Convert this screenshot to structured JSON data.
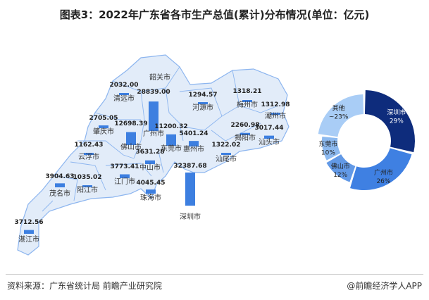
{
  "title": "图表3：2022年广东省各市生产总值(累计)分布情况(单位：亿元)",
  "source": "资料来源：广东省统计局 前瞻产业研究院",
  "credit": "@前瞻经济学人APP",
  "watermark": "前瞻产业研究院",
  "colors": {
    "bar": "#3d7fe0",
    "map_fill": "#e2ecf9",
    "map_stroke": "#8cb5ef"
  },
  "chart_data": [
    {
      "type": "bar",
      "subtype": "map-bar",
      "unit": "亿元",
      "categories": [
        "韶关市",
        "清远市",
        "广州市",
        "河源市",
        "梅州市",
        "潮州市",
        "肇庆市",
        "佛山市",
        "东莞市",
        "惠州市",
        "揭阳市",
        "汕头市",
        "汕尾市",
        "云浮市",
        "中山市",
        "江门市",
        "珠海市",
        "深圳市",
        "茂名市",
        "阳江市",
        "湛江市"
      ],
      "values": [
        null,
        2032.0,
        28839.0,
        1294.57,
        1318.21,
        1312.98,
        2705.05,
        12698.39,
        11200.32,
        5401.24,
        2260.98,
        3017.44,
        1322.02,
        1162.43,
        3631.28,
        3773.41,
        4045.45,
        32387.68,
        3904.63,
        1035.02,
        3712.56
      ],
      "labels": [
        "",
        "2032.00",
        "28839.00",
        "1294.57",
        "1318.21",
        "1312.98",
        "2705.05",
        "12698.39",
        "11200.32",
        "5401.24",
        "2260.98",
        "3017.44",
        "1322.02",
        "1162.43",
        "3631.28",
        "3773.41",
        "4045.45",
        "32387.68",
        "3904.63",
        "1035.02",
        "3712.56"
      ]
    },
    {
      "type": "pie",
      "subtype": "donut",
      "categories": [
        "深圳市",
        "广州市",
        "佛山市",
        "东莞市",
        "其他"
      ],
      "values": [
        29,
        26,
        12,
        10,
        23
      ],
      "labels": [
        "29%",
        "26%",
        "12%",
        "10%",
        "~23%"
      ],
      "colors": [
        "#0e2c7c",
        "#3f80e2",
        "#6299e6",
        "#8cb9ef",
        "#a9cdf6"
      ]
    }
  ]
}
